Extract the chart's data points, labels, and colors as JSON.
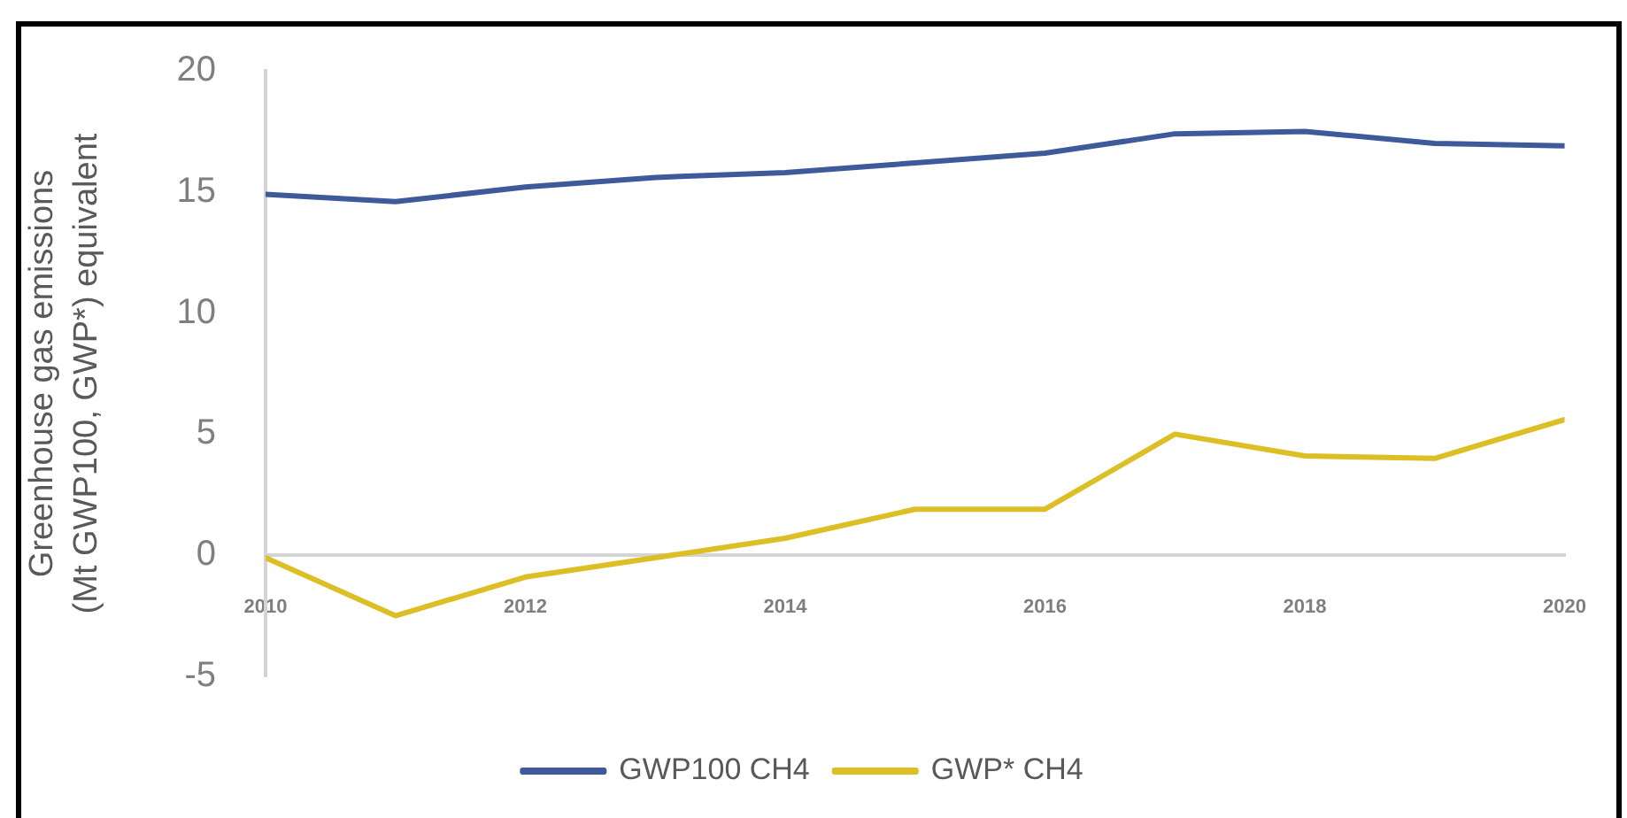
{
  "chart_data": {
    "type": "line",
    "ylabel": "Greenhouse gas emissions\n(Mt GWP100, GWP*) equivalent",
    "x": [
      2010,
      2011,
      2012,
      2013,
      2014,
      2015,
      2016,
      2017,
      2018,
      2019,
      2020
    ],
    "xlim": [
      2010,
      2020
    ],
    "xticks": [
      2010,
      2012,
      2014,
      2016,
      2018,
      2020
    ],
    "ylim": [
      -5,
      20
    ],
    "yticks": [
      -5,
      0,
      5,
      10,
      15,
      20
    ],
    "series": [
      {
        "name": "GWP100 CH4",
        "color": "#3e5a9a",
        "values": [
          14.9,
          14.6,
          15.2,
          15.6,
          15.8,
          16.2,
          16.6,
          17.4,
          17.5,
          17.0,
          16.9
        ]
      },
      {
        "name": "GWP* CH4",
        "color": "#dcbf25",
        "values": [
          -0.1,
          -2.5,
          -0.9,
          -0.1,
          0.7,
          1.9,
          1.9,
          5.0,
          4.1,
          4.0,
          5.6
        ]
      }
    ],
    "legend": "bottom",
    "grid": false,
    "marker": "none",
    "line_style": "solid"
  }
}
